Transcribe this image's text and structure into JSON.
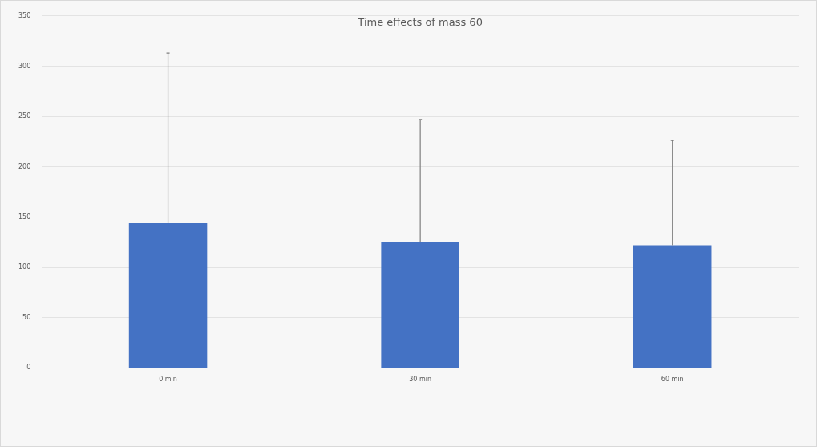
{
  "chart_data": {
    "type": "bar",
    "title": "Time effects of mass 60",
    "categories": [
      "0 min",
      "30 min",
      "60 min"
    ],
    "values": [
      144,
      125,
      122
    ],
    "errors": [
      [
        144,
        313
      ],
      [
        125,
        247
      ],
      [
        122,
        226
      ]
    ],
    "color": "#4472c4",
    "ylim": [
      0,
      350
    ],
    "yticks": [
      0,
      50,
      100,
      150,
      200,
      250,
      300,
      350
    ],
    "grid": "y",
    "legend": false
  }
}
